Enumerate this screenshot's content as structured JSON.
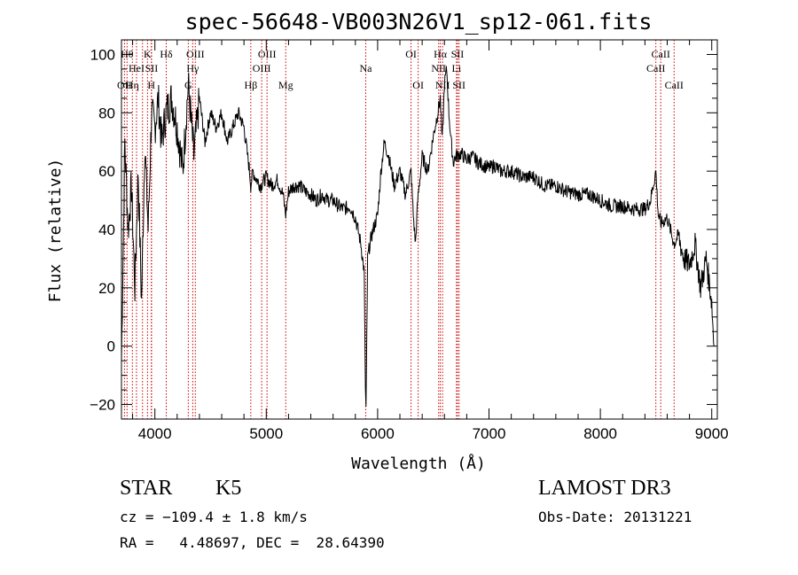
{
  "chart_data": {
    "type": "line",
    "title": "spec-56648-VB003N26V1_sp12-061.fits",
    "xlabel": "Wavelength (Å)",
    "ylabel": "Flux (relative)",
    "xlim": [
      3700,
      9050
    ],
    "ylim": [
      -25,
      105
    ],
    "xticks": [
      4000,
      5000,
      6000,
      7000,
      8000,
      9000
    ],
    "yticks": [
      -20,
      0,
      20,
      40,
      60,
      80,
      100
    ],
    "xtick_labels": [
      "4000",
      "5000",
      "6000",
      "7000",
      "8000",
      "9000"
    ],
    "ytick_labels": [
      "−20",
      "0",
      "20",
      "40",
      "60",
      "80",
      "100"
    ],
    "series": [
      {
        "line_color": "#000000",
        "x": [
          3700,
          3730,
          3760,
          3790,
          3820,
          3850,
          3880,
          3910,
          3940,
          3970,
          4000,
          4030,
          4060,
          4100,
          4150,
          4200,
          4250,
          4300,
          4350,
          4400,
          4450,
          4500,
          4550,
          4600,
          4650,
          4700,
          4750,
          4800,
          4850,
          4861,
          4880,
          4900,
          4950,
          5000,
          5050,
          5100,
          5150,
          5175,
          5200,
          5250,
          5300,
          5350,
          5400,
          5450,
          5500,
          5550,
          5600,
          5650,
          5700,
          5750,
          5800,
          5850,
          5880,
          5890,
          5896,
          5910,
          5930,
          5960,
          6000,
          6030,
          6060,
          6100,
          6150,
          6200,
          6250,
          6300,
          6320,
          6340,
          6360,
          6400,
          6450,
          6500,
          6540,
          6563,
          6580,
          6600,
          6620,
          6640,
          6660,
          6680,
          6700,
          6750,
          6800,
          6850,
          6900,
          6950,
          7000,
          7050,
          7100,
          7200,
          7300,
          7400,
          7500,
          7600,
          7700,
          7800,
          7900,
          8000,
          8100,
          8200,
          8300,
          8400,
          8450,
          8498,
          8520,
          8542,
          8600,
          8662,
          8700,
          8750,
          8800,
          8850,
          8900,
          8950,
          9000,
          9020
        ],
        "y": [
          -5,
          70,
          40,
          55,
          20,
          60,
          15,
          70,
          40,
          80,
          75,
          85,
          70,
          80,
          85,
          75,
          60,
          90,
          65,
          85,
          70,
          80,
          75,
          80,
          70,
          75,
          80,
          75,
          60,
          55,
          60,
          58,
          55,
          58,
          55,
          57,
          52,
          45,
          53,
          55,
          55,
          53,
          52,
          50,
          52,
          50,
          50,
          48,
          47,
          48,
          44,
          35,
          25,
          -15,
          -22,
          30,
          35,
          40,
          45,
          60,
          70,
          65,
          55,
          60,
          52,
          60,
          45,
          35,
          50,
          65,
          60,
          72,
          80,
          85,
          70,
          90,
          95,
          80,
          70,
          63,
          65,
          66,
          64,
          65,
          63,
          62,
          61,
          62,
          60,
          60,
          58,
          58,
          55,
          55,
          53,
          52,
          52,
          50,
          48,
          48,
          47,
          47,
          50,
          60,
          45,
          42,
          44,
          35,
          38,
          30,
          28,
          35,
          20,
          30,
          15,
          0
        ]
      }
    ],
    "lines": [
      {
        "wl": 3727,
        "label": "OII",
        "row": 3
      },
      {
        "wl": 3750,
        "label": "Hθ",
        "row": 1
      },
      {
        "wl": 3798,
        "label": "Hη",
        "row": 3
      },
      {
        "wl": 3835,
        "label": "HeI",
        "row": 2
      },
      {
        "wl": 3889,
        "label": " ",
        "row": 0
      },
      {
        "wl": 3934,
        "label": "K",
        "row": 1
      },
      {
        "wl": 3968,
        "label": "H",
        "row": 3
      },
      {
        "wl": 3970,
        "label": "SII",
        "row": 2
      },
      {
        "wl": 4102,
        "label": "Hδ",
        "row": 1
      },
      {
        "wl": 4300,
        "label": "G",
        "row": 3
      },
      {
        "wl": 4340,
        "label": "Hγ",
        "row": 2
      },
      {
        "wl": 4363,
        "label": "OIII",
        "row": 1
      },
      {
        "wl": 4861,
        "label": "Hβ",
        "row": 3
      },
      {
        "wl": 4959,
        "label": "OIII",
        "row": 2
      },
      {
        "wl": 5007,
        "label": "OIII",
        "row": 1
      },
      {
        "wl": 5175,
        "label": "Mg",
        "row": 3
      },
      {
        "wl": 5893,
        "label": "Na",
        "row": 2
      },
      {
        "wl": 6300,
        "label": "OI",
        "row": 1
      },
      {
        "wl": 6364,
        "label": "OI",
        "row": 3
      },
      {
        "wl": 6548,
        "label": "NII",
        "row": 2
      },
      {
        "wl": 6563,
        "label": "Hα",
        "row": 1
      },
      {
        "wl": 6583,
        "label": "NII",
        "row": 3
      },
      {
        "wl": 6708,
        "label": "Li",
        "row": 2
      },
      {
        "wl": 6717,
        "label": "SII",
        "row": 1
      },
      {
        "wl": 6731,
        "label": "SII",
        "row": 3
      },
      {
        "wl": 8498,
        "label": "CaII",
        "row": 2
      },
      {
        "wl": 8542,
        "label": "CaII",
        "row": 1
      },
      {
        "wl": 8662,
        "label": "CaII",
        "row": 3
      }
    ],
    "line_marker_color": "#cc0000"
  },
  "info": {
    "class_label": "STAR",
    "subclass_label": "K5",
    "survey": "LAMOST DR3",
    "cz": "cz = −109.4 ± 1.8 km/s",
    "obs_date": "Obs-Date: 20131221",
    "coords": "RA =   4.48697, DEC =  28.64390"
  }
}
